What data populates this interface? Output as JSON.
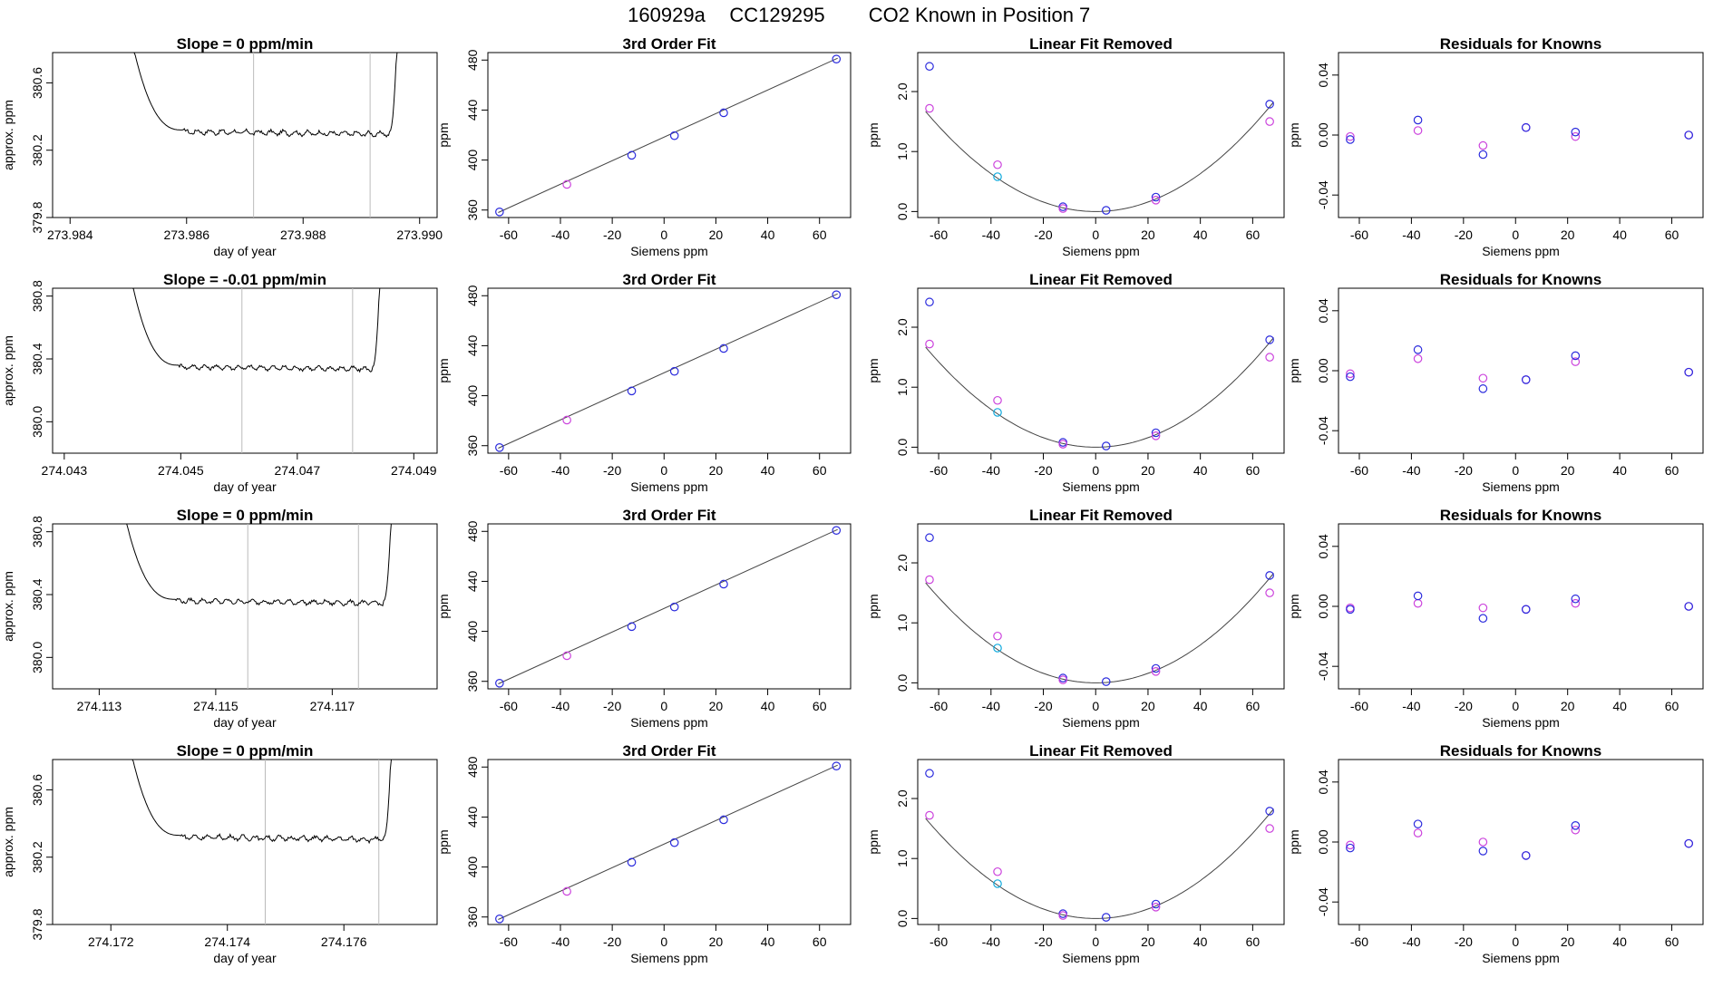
{
  "figure": {
    "title_parts": [
      "160929a",
      "CC129295",
      "CO2 Known in Position  7"
    ]
  },
  "colors": {
    "axis": "#000000",
    "trace": "#000000",
    "vline": "#bbbbbb",
    "blue": "#2b2bdd",
    "magenta": "#cc44dd",
    "cyan": "#11aadd",
    "fit": "#444444"
  },
  "rows": [
    {
      "time_panel": {
        "title": "Slope =  0  ppm/min",
        "xlabel": "day of year",
        "ylabel": "approx. ppm",
        "xticks": [
          "273.984",
          "273.986",
          "273.988",
          "273.990"
        ],
        "yticks": [
          "379.8",
          "380.2",
          "380.6"
        ]
      }
    },
    {
      "time_panel": {
        "title": "Slope =  -0.01  ppm/min",
        "xlabel": "day of year",
        "ylabel": "approx. ppm",
        "xticks": [
          "274.043",
          "274.045",
          "274.047",
          "274.049"
        ],
        "yticks": [
          "380.0",
          "380.4",
          "380.8"
        ]
      }
    },
    {
      "time_panel": {
        "title": "Slope =  0  ppm/min",
        "xlabel": "day of year",
        "ylabel": "approx. ppm",
        "xticks": [
          "274.113",
          "274.115",
          "274.117"
        ],
        "yticks": [
          "380.0",
          "380.4",
          "380.8"
        ]
      }
    },
    {
      "time_panel": {
        "title": "Slope =  0  ppm/min",
        "xlabel": "day of year",
        "ylabel": "approx. ppm",
        "xticks": [
          "274.172",
          "274.174",
          "274.176"
        ],
        "yticks": [
          "379.8",
          "380.2",
          "380.6"
        ]
      }
    }
  ],
  "panels": {
    "fit": {
      "title": "3rd Order Fit",
      "xlabel": "Siemens ppm",
      "ylabel": "ppm",
      "xticks": [
        "-60",
        "-40",
        "-20",
        "0",
        "20",
        "40",
        "60"
      ],
      "yticks": [
        "360",
        "400",
        "440",
        "480"
      ]
    },
    "linear": {
      "title": "Linear Fit Removed",
      "xlabel": "Siemens ppm",
      "ylabel": "ppm",
      "xticks": [
        "-60",
        "-40",
        "-20",
        "0",
        "20",
        "40",
        "60"
      ],
      "yticks": [
        "0.0",
        "1.0",
        "2.0"
      ]
    },
    "resid": {
      "title": "Residuals for Knowns",
      "xlabel": "Siemens ppm",
      "ylabel": "ppm",
      "xticks": [
        "-60",
        "-40",
        "-20",
        "0",
        "20",
        "40",
        "60"
      ],
      "yticks": [
        "-0.04",
        "0.00",
        "0.04"
      ]
    }
  },
  "chart_data": [
    {
      "type": "line",
      "panel_kind": "time-trace",
      "rows": [
        {
          "xlim": [
            273.9837,
            273.9903
          ],
          "ylim": [
            379.8,
            380.78
          ],
          "x_start": 273.98488,
          "x_end": 273.98965,
          "baseline": 380.31,
          "window": [
            273.98715,
            273.98915
          ]
        },
        {
          "xlim": [
            274.0428,
            274.0494
          ],
          "ylim": [
            379.8,
            380.85
          ],
          "x_start": 274.04398,
          "x_end": 274.04845,
          "baseline": 380.35,
          "window": [
            274.04605,
            274.04795
          ]
        },
        {
          "xlim": [
            274.1122,
            274.1188
          ],
          "ylim": [
            379.8,
            380.85
          ],
          "x_start": 274.11325,
          "x_end": 274.11805,
          "baseline": 380.36,
          "window": [
            274.11555,
            274.11745
          ]
        },
        {
          "xlim": [
            274.171,
            274.1776
          ],
          "ylim": [
            379.8,
            380.78
          ],
          "x_start": 274.17215,
          "x_end": 274.17685,
          "baseline": 380.32,
          "window": [
            274.17465,
            274.1766
          ]
        }
      ]
    },
    {
      "type": "scatter",
      "panel_kind": "3rd-order-fit",
      "xlim": [
        -68,
        72
      ],
      "ylim": [
        354,
        486
      ],
      "points": [
        {
          "x": -63.5,
          "y": 358.5,
          "color": "blue"
        },
        {
          "x": -37.5,
          "y": 380.5,
          "color": "magenta"
        },
        {
          "x": -12.5,
          "y": 403.8,
          "color": "blue"
        },
        {
          "x": 4.0,
          "y": 419.5,
          "color": "blue"
        },
        {
          "x": 23.0,
          "y": 437.8,
          "color": "blue"
        },
        {
          "x": 66.5,
          "y": 480.8,
          "color": "blue"
        }
      ],
      "line": {
        "x": [
          -64,
          67
        ],
        "y": [
          358,
          481.5
        ]
      }
    },
    {
      "type": "scatter",
      "panel_kind": "linear-fit-removed",
      "xlim": [
        -68,
        72
      ],
      "ylim": [
        -0.1,
        2.65
      ],
      "points": [
        {
          "x": -63.5,
          "y": 2.42,
          "color": "blue"
        },
        {
          "x": -63.5,
          "y": 1.72,
          "color": "magenta"
        },
        {
          "x": -37.5,
          "y": 0.78,
          "color": "magenta"
        },
        {
          "x": -37.5,
          "y": 0.58,
          "color": "cyan"
        },
        {
          "x": -12.5,
          "y": 0.08,
          "color": "blue"
        },
        {
          "x": -12.5,
          "y": 0.05,
          "color": "magenta"
        },
        {
          "x": 4.0,
          "y": 0.02,
          "color": "blue"
        },
        {
          "x": 23.0,
          "y": 0.24,
          "color": "blue"
        },
        {
          "x": 23.0,
          "y": 0.19,
          "color": "magenta"
        },
        {
          "x": 66.5,
          "y": 1.79,
          "color": "blue"
        },
        {
          "x": 66.5,
          "y": 1.5,
          "color": "magenta"
        }
      ],
      "curve": {
        "a": 0.000395,
        "b": 0.0,
        "c": 0.0,
        "x_range": [
          -65,
          68
        ]
      }
    },
    {
      "type": "scatter",
      "panel_kind": "residuals",
      "xlim": [
        -68,
        72
      ],
      "ylim": [
        -0.055,
        0.055
      ],
      "rows": [
        [
          {
            "x": -63.5,
            "y": -0.001,
            "color": "magenta"
          },
          {
            "x": -63.5,
            "y": -0.003,
            "color": "blue"
          },
          {
            "x": -37.5,
            "y": 0.003,
            "color": "magenta"
          },
          {
            "x": -37.5,
            "y": 0.01,
            "color": "blue"
          },
          {
            "x": -12.5,
            "y": -0.007,
            "color": "magenta"
          },
          {
            "x": -12.5,
            "y": -0.013,
            "color": "blue"
          },
          {
            "x": 4.0,
            "y": 0.005,
            "color": "magenta"
          },
          {
            "x": 4.0,
            "y": 0.005,
            "color": "blue"
          },
          {
            "x": 23.0,
            "y": -0.001,
            "color": "magenta"
          },
          {
            "x": 23.0,
            "y": 0.002,
            "color": "blue"
          },
          {
            "x": 66.5,
            "y": 0.0,
            "color": "magenta"
          },
          {
            "x": 66.5,
            "y": 0.0,
            "color": "blue"
          }
        ],
        [
          {
            "x": -63.5,
            "y": -0.002,
            "color": "magenta"
          },
          {
            "x": -63.5,
            "y": -0.004,
            "color": "blue"
          },
          {
            "x": -37.5,
            "y": 0.008,
            "color": "magenta"
          },
          {
            "x": -37.5,
            "y": 0.014,
            "color": "blue"
          },
          {
            "x": -12.5,
            "y": -0.005,
            "color": "magenta"
          },
          {
            "x": -12.5,
            "y": -0.012,
            "color": "blue"
          },
          {
            "x": 4.0,
            "y": -0.006,
            "color": "magenta"
          },
          {
            "x": 4.0,
            "y": -0.006,
            "color": "blue"
          },
          {
            "x": 23.0,
            "y": 0.006,
            "color": "magenta"
          },
          {
            "x": 23.0,
            "y": 0.01,
            "color": "blue"
          },
          {
            "x": 66.5,
            "y": -0.001,
            "color": "magenta"
          },
          {
            "x": 66.5,
            "y": -0.001,
            "color": "blue"
          }
        ],
        [
          {
            "x": -63.5,
            "y": -0.001,
            "color": "magenta"
          },
          {
            "x": -63.5,
            "y": -0.002,
            "color": "blue"
          },
          {
            "x": -37.5,
            "y": 0.002,
            "color": "magenta"
          },
          {
            "x": -37.5,
            "y": 0.007,
            "color": "blue"
          },
          {
            "x": -12.5,
            "y": -0.001,
            "color": "magenta"
          },
          {
            "x": -12.5,
            "y": -0.008,
            "color": "blue"
          },
          {
            "x": 4.0,
            "y": -0.002,
            "color": "magenta"
          },
          {
            "x": 4.0,
            "y": -0.002,
            "color": "blue"
          },
          {
            "x": 23.0,
            "y": 0.002,
            "color": "magenta"
          },
          {
            "x": 23.0,
            "y": 0.005,
            "color": "blue"
          },
          {
            "x": 66.5,
            "y": 0.0,
            "color": "magenta"
          },
          {
            "x": 66.5,
            "y": 0.0,
            "color": "blue"
          }
        ],
        [
          {
            "x": -63.5,
            "y": -0.002,
            "color": "magenta"
          },
          {
            "x": -63.5,
            "y": -0.004,
            "color": "blue"
          },
          {
            "x": -37.5,
            "y": 0.006,
            "color": "magenta"
          },
          {
            "x": -37.5,
            "y": 0.012,
            "color": "blue"
          },
          {
            "x": -12.5,
            "y": 0.0,
            "color": "magenta"
          },
          {
            "x": -12.5,
            "y": -0.006,
            "color": "blue"
          },
          {
            "x": 4.0,
            "y": -0.009,
            "color": "magenta"
          },
          {
            "x": 4.0,
            "y": -0.009,
            "color": "blue"
          },
          {
            "x": 23.0,
            "y": 0.008,
            "color": "magenta"
          },
          {
            "x": 23.0,
            "y": 0.011,
            "color": "blue"
          },
          {
            "x": 66.5,
            "y": -0.001,
            "color": "magenta"
          },
          {
            "x": 66.5,
            "y": -0.001,
            "color": "blue"
          }
        ]
      ]
    }
  ]
}
